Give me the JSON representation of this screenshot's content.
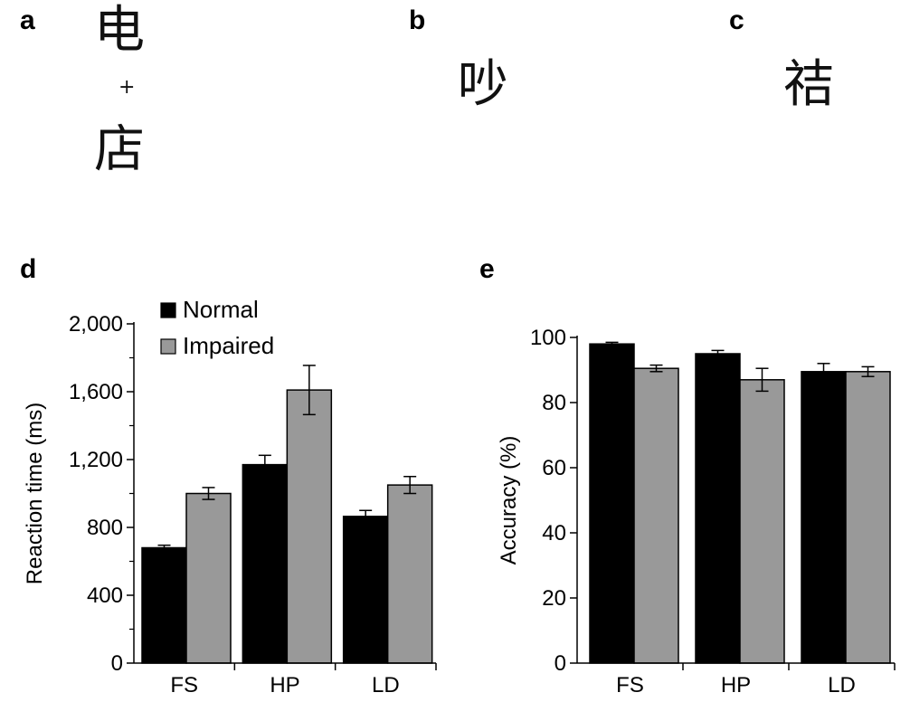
{
  "panels": {
    "a": {
      "label": "a",
      "top_char": "电",
      "plus": "+",
      "bottom_char": "店"
    },
    "b": {
      "label": "b",
      "char": "吵"
    },
    "c": {
      "label": "c",
      "char": "祮"
    },
    "d": {
      "label": "d"
    },
    "e": {
      "label": "e"
    }
  },
  "colors": {
    "normal": "#000000",
    "impaired": "#999999"
  },
  "chart_data": [
    {
      "type": "bar",
      "panel": "d",
      "categories": [
        "FS",
        "HP",
        "LD"
      ],
      "series": [
        {
          "name": "Normal",
          "values": [
            680,
            1170,
            865
          ],
          "errors": [
            15,
            55,
            35
          ]
        },
        {
          "name": "Impaired",
          "values": [
            1000,
            1610,
            1050
          ],
          "errors": [
            35,
            145,
            50
          ]
        }
      ],
      "xlabel": "",
      "ylabel": "Reaction time (ms)",
      "ylim": [
        0,
        2000
      ],
      "yticks": [
        0,
        400,
        800,
        1200,
        1600,
        2000
      ],
      "yticklabels": [
        "0",
        "400",
        "800",
        "1,200",
        "1,600",
        "2,000"
      ],
      "legend": "top-left"
    },
    {
      "type": "bar",
      "panel": "e",
      "categories": [
        "FS",
        "HP",
        "LD"
      ],
      "series": [
        {
          "name": "Normal",
          "values": [
            98,
            95,
            89.5
          ],
          "errors": [
            0.5,
            1,
            2.5
          ]
        },
        {
          "name": "Impaired",
          "values": [
            90.5,
            87,
            89.5
          ],
          "errors": [
            1,
            3.5,
            1.5
          ]
        }
      ],
      "xlabel": "",
      "ylabel": "Accuracy (%)",
      "ylim": [
        0,
        100
      ],
      "yticks": [
        0,
        20,
        40,
        60,
        80,
        100
      ],
      "yticklabels": [
        "0",
        "20",
        "40",
        "60",
        "80",
        "100"
      ]
    }
  ]
}
